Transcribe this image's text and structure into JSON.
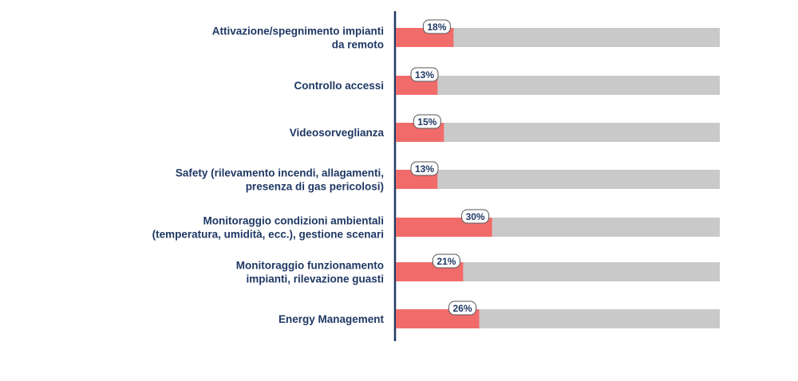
{
  "colors": {
    "bar_fill": "#f26b6b",
    "bar_track": "#c9c9c9",
    "axis": "#1f3864",
    "text": "#1f3864",
    "label_bg": "#ffffff",
    "label_border": "#555555"
  },
  "chart_data": {
    "type": "bar",
    "orientation": "horizontal",
    "title": "",
    "xlabel": "",
    "ylabel": "",
    "xlim": [
      0,
      100
    ],
    "value_suffix": "%",
    "grid": false,
    "legend": "none",
    "categories": [
      [
        "Attivazione/spegnimento impianti",
        "da remoto"
      ],
      [
        "Controllo accessi"
      ],
      [
        "Videosorveglianza"
      ],
      [
        "Safety (rilevamento incendi, allagamenti,",
        "presenza di gas pericolosi)"
      ],
      [
        "Monitoraggio condizioni ambientali",
        "(temperatura, umidità, ecc.), gestione scenari"
      ],
      [
        "Monitoraggio funzionamento",
        "impianti, rilevazione guasti"
      ],
      [
        "Energy Management"
      ]
    ],
    "values": [
      18,
      13,
      15,
      13,
      30,
      21,
      26
    ],
    "value_labels": [
      "18%",
      "13%",
      "15%",
      "13%",
      "30%",
      "21%",
      "26%"
    ]
  }
}
